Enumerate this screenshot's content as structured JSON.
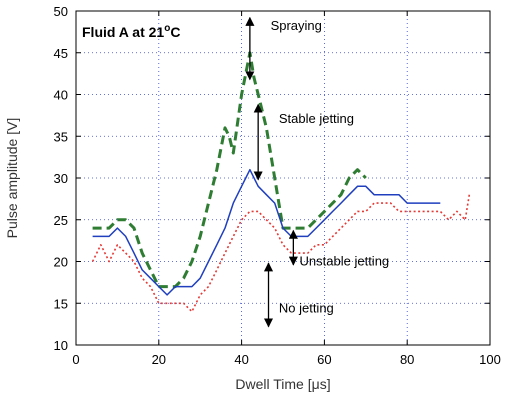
{
  "chart_data": {
    "type": "line",
    "title": "",
    "xlabel": "Dwell Time [μs]",
    "ylabel": "Pulse amplitude [V]",
    "xlim": [
      0,
      100
    ],
    "ylim": [
      10,
      50
    ],
    "xticks": [
      "0",
      "20",
      "40",
      "60",
      "80",
      "100"
    ],
    "yticks": [
      "10",
      "15",
      "20",
      "25",
      "30",
      "35",
      "40",
      "45",
      "50"
    ],
    "grid": true,
    "panel_label": "Fluid A at 21",
    "panel_label_sup": "o",
    "panel_label_unit": "C",
    "series": [
      {
        "style": "dashed",
        "color": "#2e7d32",
        "x": [
          4,
          6,
          8,
          10,
          12,
          14,
          16,
          18,
          20,
          22,
          24,
          26,
          28,
          30,
          32,
          34,
          36,
          37,
          38,
          40,
          42,
          43,
          44,
          46,
          48,
          50,
          52,
          54,
          56,
          58,
          60,
          62,
          64,
          66,
          68,
          70
        ],
        "y": [
          24,
          24,
          24,
          25,
          25,
          24,
          21,
          19,
          17,
          17,
          17,
          18,
          20,
          23,
          27,
          31,
          36,
          35,
          33,
          40,
          45,
          42,
          40,
          36,
          30,
          24,
          24,
          24,
          24,
          25,
          26,
          27,
          28,
          30,
          31,
          30
        ]
      },
      {
        "style": "solid",
        "color": "#1f3fbf",
        "x": [
          4,
          6,
          8,
          10,
          12,
          14,
          16,
          18,
          20,
          22,
          24,
          26,
          28,
          30,
          32,
          34,
          36,
          38,
          40,
          42,
          44,
          46,
          48,
          50,
          52,
          54,
          56,
          58,
          60,
          62,
          64,
          66,
          68,
          70,
          72,
          74,
          76,
          78,
          80,
          82,
          84,
          86,
          88
        ],
        "y": [
          23,
          23,
          23,
          24,
          23,
          21,
          19,
          18,
          17,
          16,
          17,
          17,
          17,
          18,
          20,
          22,
          24,
          27,
          29,
          31,
          29,
          28,
          27,
          24,
          23,
          23,
          23,
          24,
          25,
          26,
          27,
          28,
          29,
          29,
          28,
          28,
          28,
          28,
          27,
          27,
          27,
          27,
          27
        ]
      },
      {
        "style": "dotted",
        "color": "#e53935",
        "x": [
          4,
          6,
          8,
          10,
          12,
          14,
          16,
          18,
          20,
          22,
          24,
          26,
          28,
          30,
          32,
          34,
          36,
          38,
          40,
          42,
          44,
          46,
          48,
          50,
          52,
          54,
          56,
          58,
          60,
          62,
          64,
          66,
          68,
          70,
          72,
          74,
          76,
          78,
          80,
          82,
          84,
          86,
          88,
          90,
          92,
          94,
          95
        ],
        "y": [
          20,
          22,
          20,
          22,
          21,
          20,
          18,
          17,
          15,
          15,
          15,
          15,
          14,
          16,
          17,
          19,
          21,
          23,
          25,
          26,
          26,
          25,
          24,
          22,
          21,
          21,
          21,
          22,
          22,
          23,
          24,
          25,
          26,
          26,
          27,
          27,
          27,
          26,
          26,
          26,
          26,
          26,
          26,
          25,
          26,
          25,
          28
        ]
      }
    ],
    "annotations": [
      {
        "text": "Spraying",
        "x": 47,
        "y": 47.7,
        "arrow_x": 42,
        "arrow_from": 49.2,
        "arrow_to": 41.8
      },
      {
        "text": "Stable jetting",
        "x": 49,
        "y": 36.6,
        "arrow_x": 44,
        "arrow_from": 38.8,
        "arrow_to": 29.8
      },
      {
        "text": "Unstable jetting",
        "x": 54,
        "y": 19.5,
        "arrow_x": 52.5,
        "arrow_from": 23.7,
        "arrow_to": 19.6
      },
      {
        "text": "No jetting",
        "x": 49,
        "y": 13.9,
        "arrow_x": 46.5,
        "arrow_from": 19.8,
        "arrow_to": 12.2
      }
    ]
  }
}
